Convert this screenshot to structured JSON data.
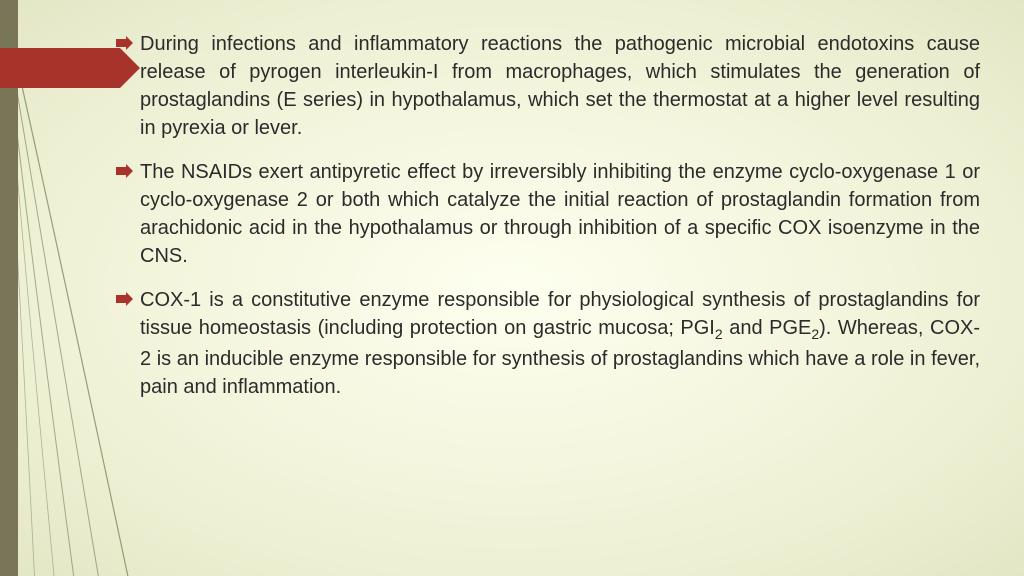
{
  "slide": {
    "background": {
      "gradient_center": "#feffef",
      "gradient_mid": "#eef0d4",
      "gradient_edge": "#e3e6c5"
    },
    "left_band_color": "#7a7558",
    "arrow_color": "#a8332a",
    "swoosh_color": "#6f7a4f",
    "text_color": "#2b2b2b",
    "font_family": "Comic Sans MS",
    "font_size_pt": 20,
    "bullets": [
      {
        "text": "During infections and inflammatory reactions the pathogenic microbial endotoxins cause release of pyrogen interleukin-I from macrophages, which stimulates the generation of prostaglandins (E series) in hypothalamus, which set the thermostat at a higher level resulting in pyrexia or lever."
      },
      {
        "text": "The NSAIDs exert antipyretic effect by irreversibly inhibiting the enzyme cyclo-oxygenase 1 or cyclo-oxygenase 2  or both which catalyze the initial reaction of prostaglandin formation from arachidonic acid in the hypothalamus or through inhibition of a specific COX isoenzyme in the  CNS."
      },
      {
        "text_html": "COX-1 is a constitutive enzyme responsible for physiological synthesis of prostaglandins for tissue homeostasis (including protection on gastric mucosa; PGI<sub>2</sub> and PGE<sub>2</sub>). Whereas, COX-2 is an inducible enzyme responsible for synthesis of prostaglandins which have a role in fever, pain and inflammation."
      }
    ]
  }
}
